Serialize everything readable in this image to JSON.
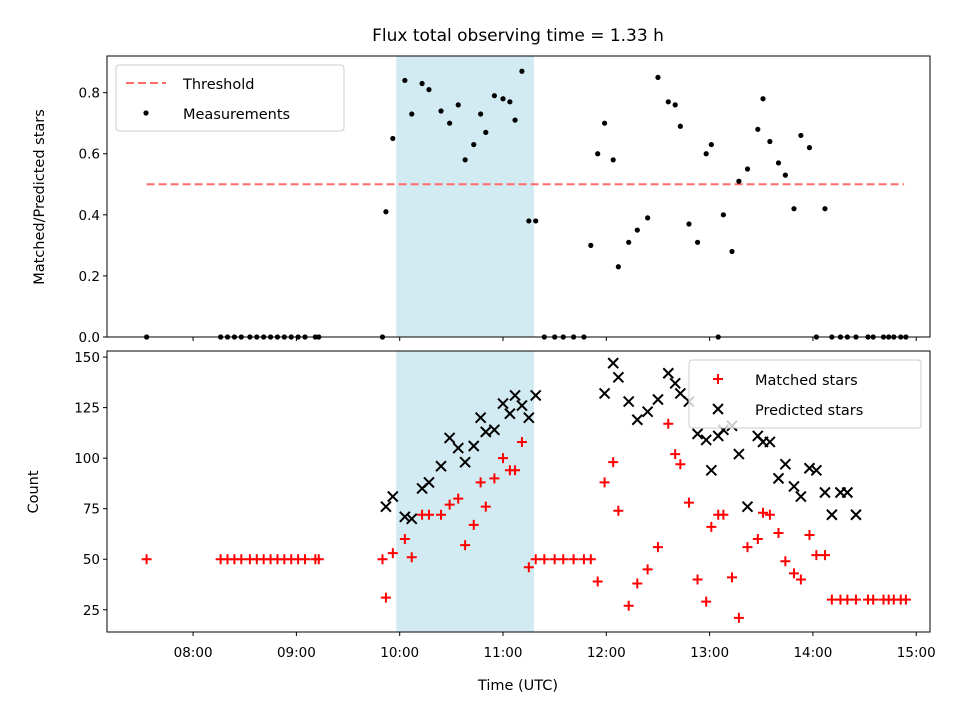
{
  "chart_data": [
    {
      "type": "scatter",
      "title": "Flux total observing time = 1.33 h",
      "xlabel": "",
      "ylabel": "Matched/Predicted stars",
      "xlim": [
        "07:10",
        "15:08"
      ],
      "ylim": [
        0,
        0.92
      ],
      "yticks": [
        "0.0",
        "0.2",
        "0.4",
        "0.6",
        "0.8"
      ],
      "shaded_span": {
        "start": "09:58",
        "end": "11:18",
        "color": "#add8e6"
      },
      "legend": {
        "position": "upper-left",
        "entries": [
          "Threshold",
          "Measurements"
        ]
      },
      "series": [
        {
          "name": "Threshold",
          "style": "dashed-line",
          "color": "#ff6b6b",
          "x": [
            "07:33",
            "14:53"
          ],
          "y": [
            0.5,
            0.5
          ]
        },
        {
          "name": "Measurements",
          "style": "dot",
          "color": "#000000",
          "x": [
            "07:33",
            "08:16",
            "08:20",
            "08:24",
            "08:28",
            "08:33",
            "08:37",
            "08:41",
            "08:45",
            "08:49",
            "08:53",
            "08:57",
            "09:01",
            "09:05",
            "09:11",
            "09:13",
            "09:50",
            "09:52",
            "09:56",
            "10:03",
            "10:07",
            "10:13",
            "10:17",
            "10:24",
            "10:29",
            "10:34",
            "10:38",
            "10:43",
            "10:47",
            "10:50",
            "10:55",
            "11:00",
            "11:04",
            "11:07",
            "11:11",
            "11:15",
            "11:19",
            "11:24",
            "11:30",
            "11:35",
            "11:41",
            "11:47",
            "11:51",
            "11:55",
            "11:59",
            "12:04",
            "12:07",
            "12:13",
            "12:18",
            "12:24",
            "12:30",
            "12:36",
            "12:40",
            "12:43",
            "12:48",
            "12:53",
            "12:58",
            "13:01",
            "13:05",
            "13:08",
            "13:13",
            "13:17",
            "13:22",
            "13:28",
            "13:31",
            "13:35",
            "13:40",
            "13:44",
            "13:49",
            "13:53",
            "13:58",
            "14:02",
            "14:07",
            "14:11",
            "14:16",
            "14:20",
            "14:25",
            "14:32",
            "14:35",
            "14:41",
            "14:44",
            "14:47",
            "14:51",
            "14:54"
          ],
          "y": [
            0.0,
            0.0,
            0.0,
            0.0,
            0.0,
            0.0,
            0.0,
            0.0,
            0.0,
            0.0,
            0.0,
            0.0,
            0.0,
            0.0,
            0.0,
            0.0,
            0.0,
            0.41,
            0.65,
            0.84,
            0.73,
            0.83,
            0.81,
            0.74,
            0.7,
            0.76,
            0.58,
            0.63,
            0.73,
            0.67,
            0.79,
            0.78,
            0.77,
            0.71,
            0.87,
            0.38,
            0.38,
            0.0,
            0.0,
            0.0,
            0.0,
            0.0,
            0.3,
            0.6,
            0.7,
            0.58,
            0.23,
            0.31,
            0.35,
            0.39,
            0.85,
            0.77,
            0.76,
            0.69,
            0.37,
            0.31,
            0.6,
            0.63,
            0.0,
            0.4,
            0.28,
            0.51,
            0.55,
            0.68,
            0.78,
            0.64,
            0.57,
            0.53,
            0.42,
            0.66,
            0.62,
            0.0,
            0.42,
            0.0,
            0.0,
            0.0,
            0.0,
            0.0,
            0.0,
            0.0,
            0.0,
            0.0,
            0.0,
            0.0
          ]
        }
      ]
    },
    {
      "type": "scatter",
      "title": "",
      "xlabel": "Time (UTC)",
      "ylabel": "Count",
      "xlim": [
        "07:10",
        "15:08"
      ],
      "ylim": [
        14,
        153
      ],
      "yticks": [
        "25",
        "50",
        "75",
        "100",
        "125",
        "150"
      ],
      "xticks": [
        "08:00",
        "09:00",
        "10:00",
        "11:00",
        "12:00",
        "13:00",
        "14:00",
        "15:00"
      ],
      "shaded_span": {
        "start": "09:58",
        "end": "11:18",
        "color": "#add8e6"
      },
      "legend": {
        "position": "upper-right",
        "entries": [
          "Matched stars",
          "Predicted stars"
        ]
      },
      "series": [
        {
          "name": "Matched stars",
          "marker": "plus",
          "color": "#ff0000",
          "x": [
            "07:33",
            "08:16",
            "08:20",
            "08:24",
            "08:28",
            "08:33",
            "08:37",
            "08:41",
            "08:45",
            "08:49",
            "08:53",
            "08:57",
            "09:01",
            "09:05",
            "09:11",
            "09:13",
            "09:50",
            "09:52",
            "09:56",
            "10:03",
            "10:07",
            "10:13",
            "10:17",
            "10:24",
            "10:29",
            "10:34",
            "10:38",
            "10:43",
            "10:47",
            "10:50",
            "10:55",
            "11:00",
            "11:04",
            "11:07",
            "11:11",
            "11:15",
            "11:19",
            "11:24",
            "11:30",
            "11:35",
            "11:41",
            "11:47",
            "11:51",
            "11:55",
            "11:59",
            "12:04",
            "12:07",
            "12:13",
            "12:18",
            "12:24",
            "12:30",
            "12:36",
            "12:40",
            "12:43",
            "12:48",
            "12:53",
            "12:58",
            "13:01",
            "13:05",
            "13:08",
            "13:13",
            "13:17",
            "13:22",
            "13:28",
            "13:31",
            "13:35",
            "13:40",
            "13:44",
            "13:49",
            "13:53",
            "13:58",
            "14:02",
            "14:07",
            "14:11",
            "14:16",
            "14:20",
            "14:25",
            "14:32",
            "14:35",
            "14:41",
            "14:44",
            "14:47",
            "14:51",
            "14:54"
          ],
          "y": [
            50,
            50,
            50,
            50,
            50,
            50,
            50,
            50,
            50,
            50,
            50,
            50,
            50,
            50,
            50,
            50,
            50,
            31,
            53,
            60,
            51,
            72,
            72,
            72,
            77,
            80,
            57,
            67,
            88,
            76,
            90,
            100,
            94,
            94,
            108,
            46,
            50,
            50,
            50,
            50,
            50,
            50,
            50,
            39,
            88,
            98,
            74,
            27,
            38,
            45,
            56,
            117,
            102,
            97,
            78,
            40,
            29,
            66,
            72,
            72,
            41,
            21,
            56,
            60,
            73,
            72,
            63,
            49,
            43,
            40,
            62,
            52,
            52,
            30,
            30,
            30,
            30,
            30,
            30,
            30,
            30,
            30,
            30,
            30
          ]
        },
        {
          "name": "Predicted stars",
          "marker": "x",
          "color": "#000000",
          "x": [
            "09:52",
            "09:56",
            "10:03",
            "10:07",
            "10:13",
            "10:17",
            "10:24",
            "10:29",
            "10:34",
            "10:38",
            "10:43",
            "10:47",
            "10:50",
            "10:55",
            "11:00",
            "11:04",
            "11:07",
            "11:11",
            "11:15",
            "11:19",
            "11:59",
            "12:04",
            "12:07",
            "12:13",
            "12:18",
            "12:24",
            "12:30",
            "12:36",
            "12:40",
            "12:43",
            "12:48",
            "12:53",
            "12:58",
            "13:01",
            "13:05",
            "13:08",
            "13:13",
            "13:17",
            "13:22",
            "13:28",
            "13:31",
            "13:35",
            "13:40",
            "13:44",
            "13:49",
            "13:53",
            "13:58",
            "14:02",
            "14:07",
            "14:11",
            "14:16",
            "14:20",
            "14:25"
          ],
          "y": [
            76,
            81,
            71,
            70,
            85,
            88,
            96,
            110,
            105,
            98,
            106,
            120,
            113,
            114,
            127,
            122,
            131,
            126,
            120,
            131,
            132,
            147,
            140,
            128,
            119,
            123,
            129,
            142,
            137,
            132,
            128,
            112,
            109,
            94,
            111,
            114,
            116,
            102,
            76,
            111,
            108,
            108,
            90,
            97,
            86,
            81,
            95,
            94,
            83,
            72,
            83,
            83,
            72
          ]
        }
      ]
    }
  ]
}
